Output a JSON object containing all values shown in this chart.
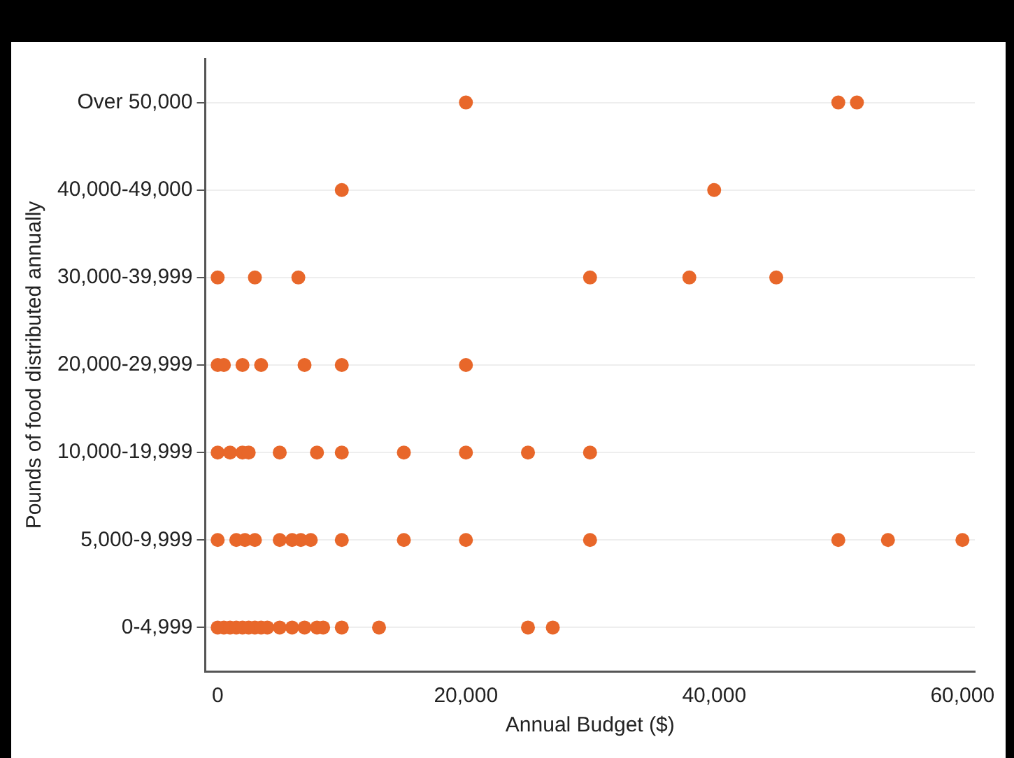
{
  "chart_data": {
    "type": "scatter",
    "orientation": "horizontal",
    "xlabel": "Annual Budget ($)",
    "ylabel": "Pounds of food distributed annually",
    "categories": [
      "Over 50,000",
      "40,000-49,000",
      "30,000-39,999",
      "20,000-29,999",
      "10,000-19,999",
      "5,000-9,999",
      "0-4,999"
    ],
    "series": [
      {
        "color": "#e8672a",
        "x": [
          "Over 50,000",
          "Over 50,000",
          "Over 50,000",
          "40,000-49,000",
          "40,000-49,000",
          "30,000-39,999",
          "30,000-39,999",
          "30,000-39,999",
          "30,000-39,999",
          "30,000-39,999",
          "30,000-39,999",
          "20,000-29,999",
          "20,000-29,999",
          "20,000-29,999",
          "20,000-29,999",
          "20,000-29,999",
          "20,000-29,999",
          "20,000-29,999",
          "10,000-19,999",
          "10,000-19,999",
          "10,000-19,999",
          "10,000-19,999",
          "10,000-19,999",
          "10,000-19,999",
          "10,000-19,999",
          "10,000-19,999",
          "10,000-19,999",
          "10,000-19,999",
          "10,000-19,999",
          "5,000-9,999",
          "5,000-9,999",
          "5,000-9,999",
          "5,000-9,999",
          "5,000-9,999",
          "5,000-9,999",
          "5,000-9,999",
          "5,000-9,999",
          "5,000-9,999",
          "5,000-9,999",
          "5,000-9,999",
          "5,000-9,999",
          "5,000-9,999",
          "5,000-9,999",
          "5,000-9,999",
          "0-4,999",
          "0-4,999",
          "0-4,999",
          "0-4,999",
          "0-4,999",
          "0-4,999",
          "0-4,999",
          "0-4,999",
          "0-4,999",
          "0-4,999",
          "0-4,999",
          "0-4,999",
          "0-4,999",
          "0-4,999",
          "0-4,999",
          "0-4,999",
          "0-4,999",
          "0-4,999"
        ],
        "values": [
          20000,
          50000,
          51500,
          10000,
          40000,
          0,
          3000,
          6500,
          30000,
          38000,
          45000,
          0,
          500,
          2000,
          3500,
          7000,
          10000,
          20000,
          0,
          1000,
          2000,
          2500,
          5000,
          8000,
          10000,
          15000,
          20000,
          25000,
          30000,
          0,
          1500,
          2200,
          3000,
          5000,
          6000,
          6700,
          7500,
          10000,
          15000,
          20000,
          30000,
          50000,
          54000,
          60000,
          0,
          500,
          1000,
          1500,
          2000,
          2500,
          3000,
          3500,
          4000,
          5000,
          6000,
          7000,
          8000,
          8500,
          10000,
          13000,
          25000,
          27000
        ]
      }
    ],
    "xlim": [
      -1000,
      61000
    ],
    "xticks": [
      0,
      {
        "value": 20000,
        "label": "20,000"
      },
      {
        "value": 40000,
        "label": "40,000"
      },
      {
        "value": 60000,
        "label": "60,000"
      }
    ],
    "grid": "y",
    "marker": "circle",
    "legend": false
  }
}
